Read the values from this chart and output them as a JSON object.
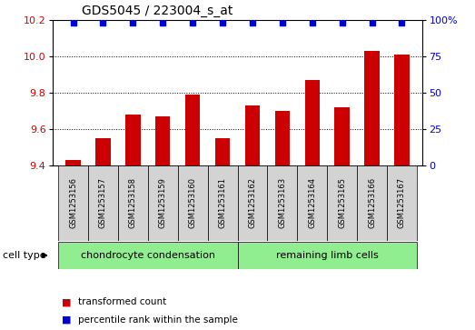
{
  "title": "GDS5045 / 223004_s_at",
  "samples": [
    "GSM1253156",
    "GSM1253157",
    "GSM1253158",
    "GSM1253159",
    "GSM1253160",
    "GSM1253161",
    "GSM1253162",
    "GSM1253163",
    "GSM1253164",
    "GSM1253165",
    "GSM1253166",
    "GSM1253167"
  ],
  "bar_values": [
    9.43,
    9.55,
    9.68,
    9.67,
    9.79,
    9.55,
    9.73,
    9.7,
    9.87,
    9.72,
    10.03,
    10.01
  ],
  "percentile_values": [
    98,
    98,
    98,
    98,
    98,
    98,
    98,
    98,
    98,
    98,
    98,
    98
  ],
  "ylim_left": [
    9.4,
    10.2
  ],
  "ylim_right": [
    0,
    100
  ],
  "yticks_left": [
    9.4,
    9.6,
    9.8,
    10.0,
    10.2
  ],
  "yticks_right": [
    0,
    25,
    50,
    75,
    100
  ],
  "ytick_labels_right": [
    "0",
    "25",
    "50",
    "75",
    "100%"
  ],
  "grid_values": [
    9.6,
    9.8,
    10.0
  ],
  "bar_color": "#cc0000",
  "dot_color": "#0000cc",
  "cell_type_groups": [
    {
      "label": "chondrocyte condensation",
      "start": 0,
      "end": 6
    },
    {
      "label": "remaining limb cells",
      "start": 6,
      "end": 12
    }
  ],
  "cell_type_label": "cell type",
  "legend_items": [
    {
      "color": "#cc0000",
      "label": "transformed count"
    },
    {
      "color": "#0000cc",
      "label": "percentile rank within the sample"
    }
  ],
  "sample_box_color": "#d3d3d3",
  "cell_type_box_color": "#90ee90",
  "plot_bg": "#ffffff",
  "title_fontsize": 10,
  "tick_fontsize": 8,
  "label_fontsize": 8,
  "sample_fontsize": 6,
  "cell_type_fontsize": 8
}
